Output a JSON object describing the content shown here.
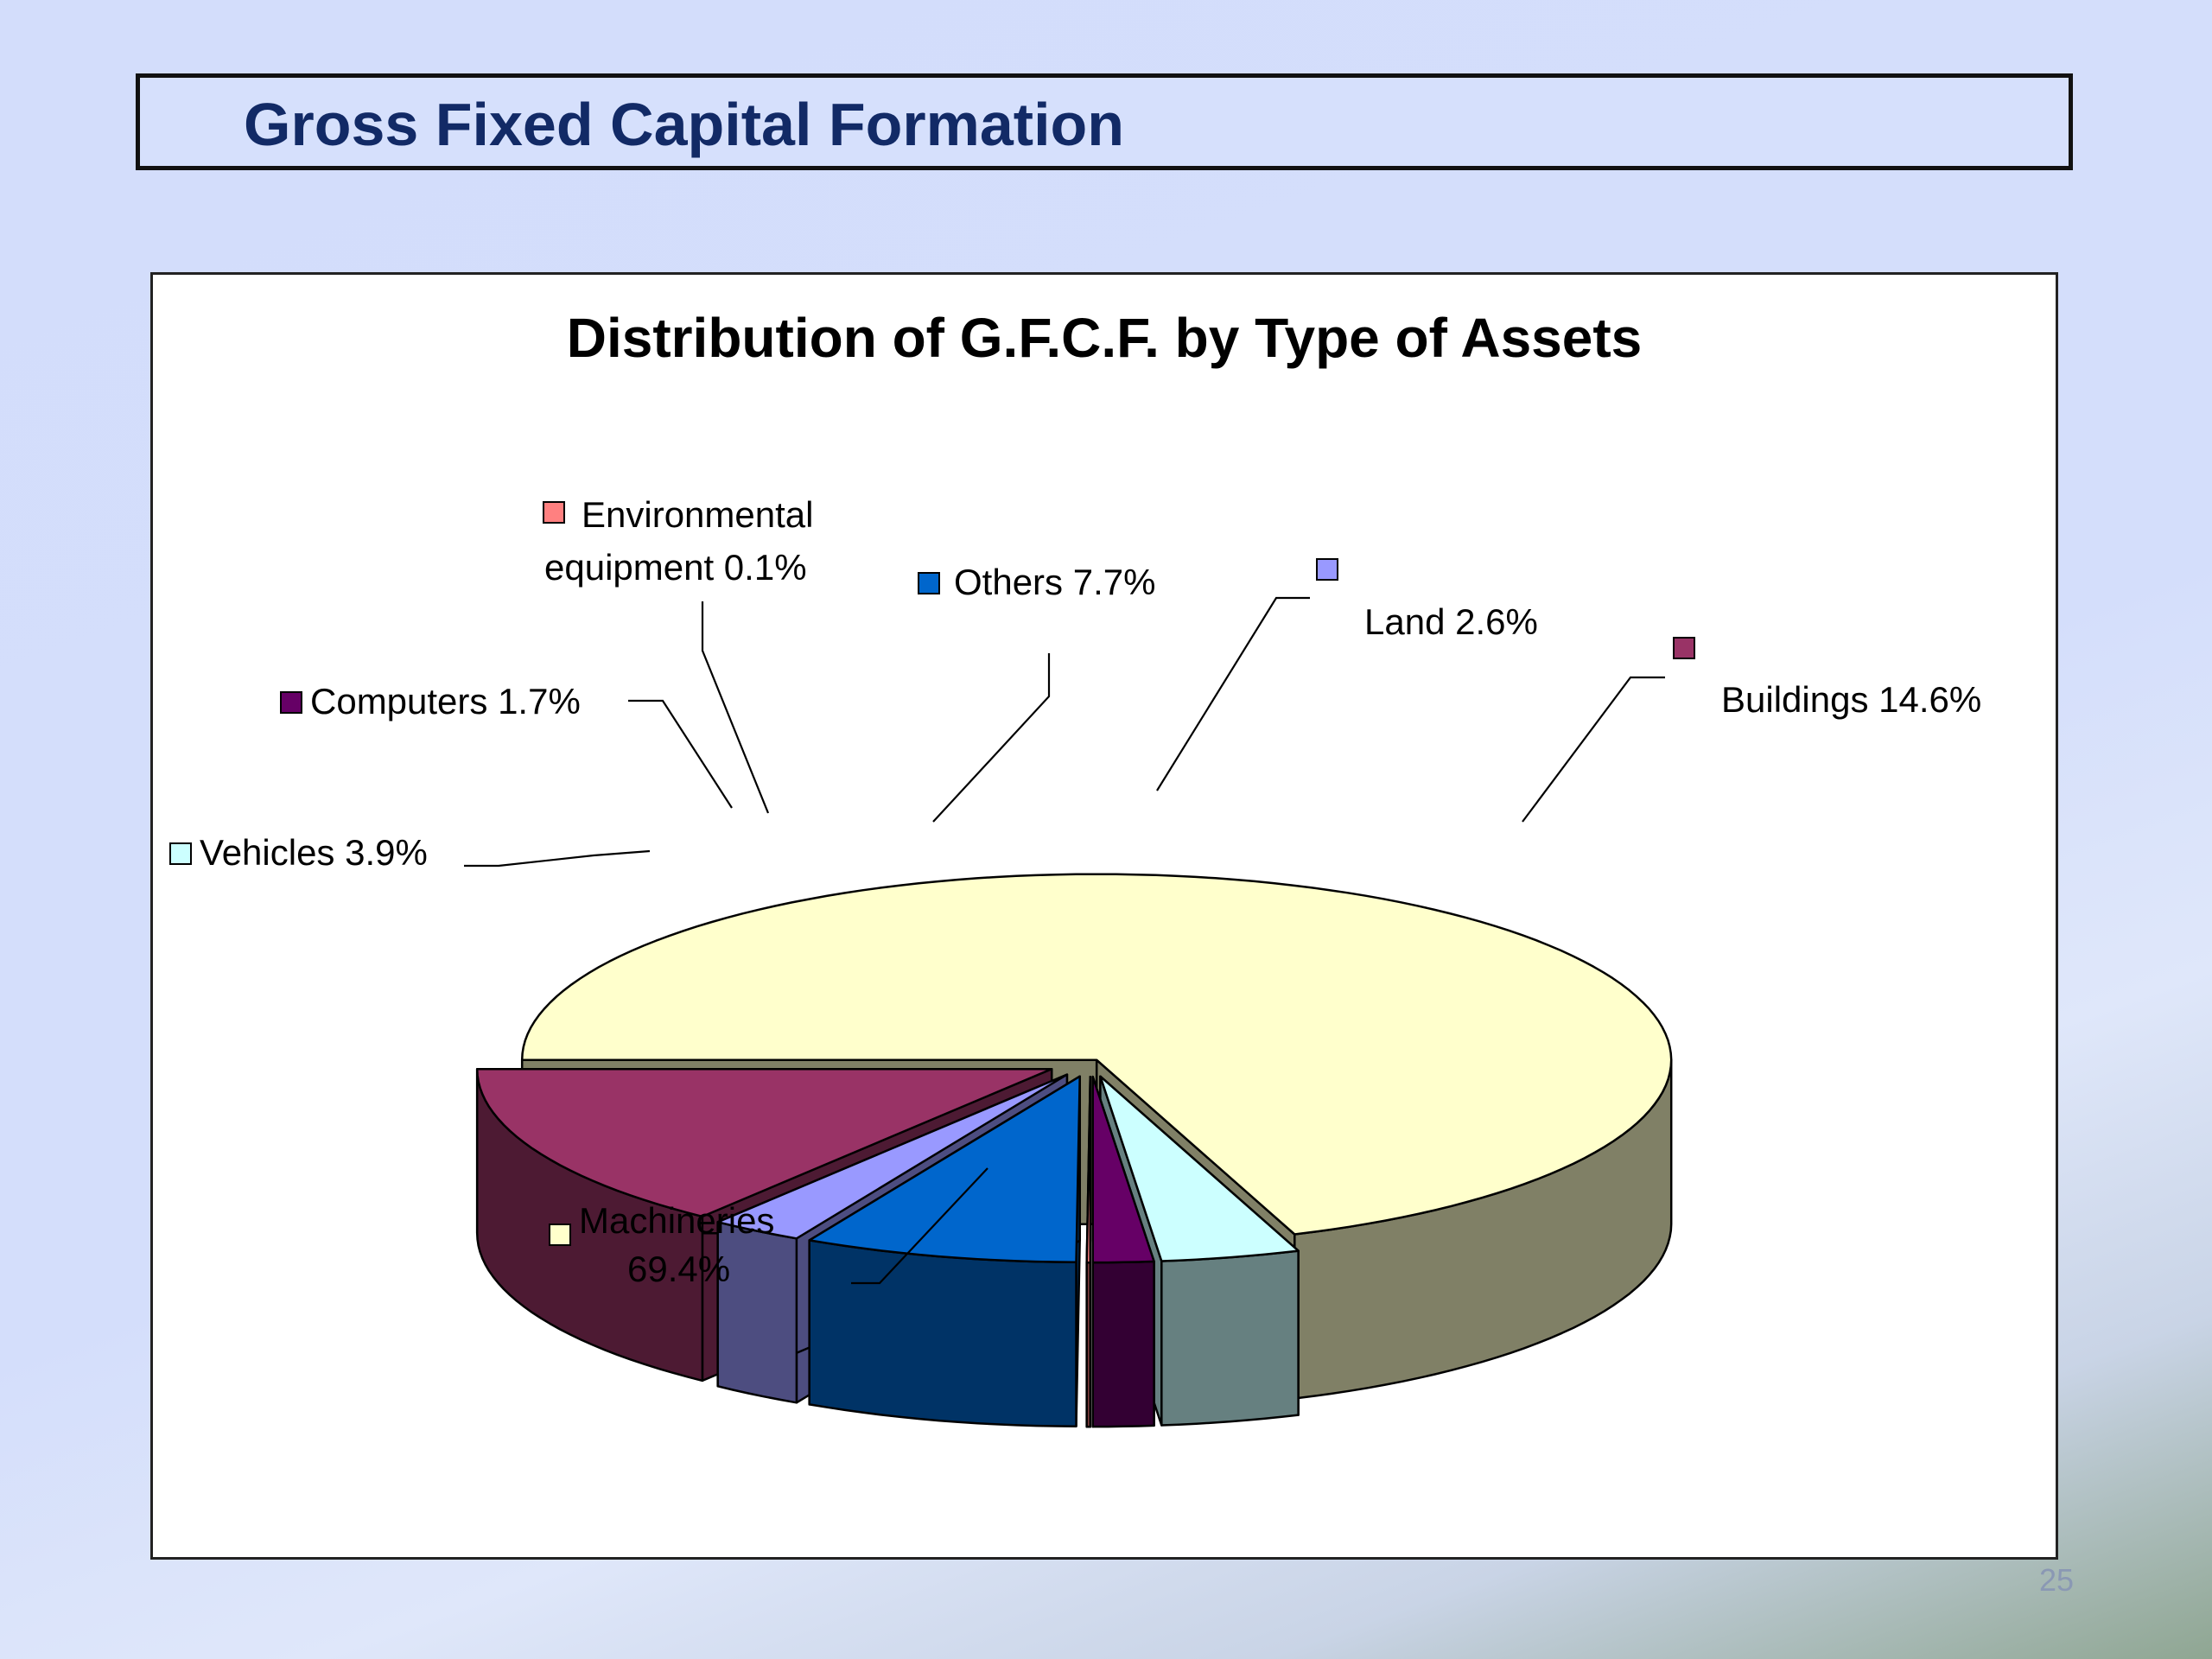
{
  "slide": {
    "title": "Gross Fixed Capital Formation",
    "page_number": "25"
  },
  "chart_data": {
    "type": "pie",
    "style": "3d-exploded",
    "title": "Distribution of G.F.C.F.  by Type of Assets",
    "legend": "none",
    "slices": [
      {
        "name": "Machineries",
        "value": 69.4,
        "label_lines": [
          "Machineries",
          "69.4%"
        ],
        "color": "#ffffcc"
      },
      {
        "name": "Vehicles",
        "value": 3.9,
        "label_lines": [
          "Vehicles 3.9%"
        ],
        "color": "#ccffff"
      },
      {
        "name": "Computers",
        "value": 1.7,
        "label_lines": [
          "Computers 1.7%"
        ],
        "color": "#660066"
      },
      {
        "name": "Environmental equipment",
        "value": 0.1,
        "label_lines": [
          "Environmental",
          "equipment 0.1%"
        ],
        "color": "#ff8080"
      },
      {
        "name": "Others",
        "value": 7.7,
        "label_lines": [
          "Others 7.7%"
        ],
        "color": "#0066cc"
      },
      {
        "name": "Land",
        "value": 2.6,
        "label_lines": [
          "Land 2.6%"
        ],
        "color": "#9999ff"
      },
      {
        "name": "Buildings",
        "value": 14.6,
        "label_lines": [
          "Buildings 14.6%"
        ],
        "color": "#993366"
      }
    ]
  }
}
